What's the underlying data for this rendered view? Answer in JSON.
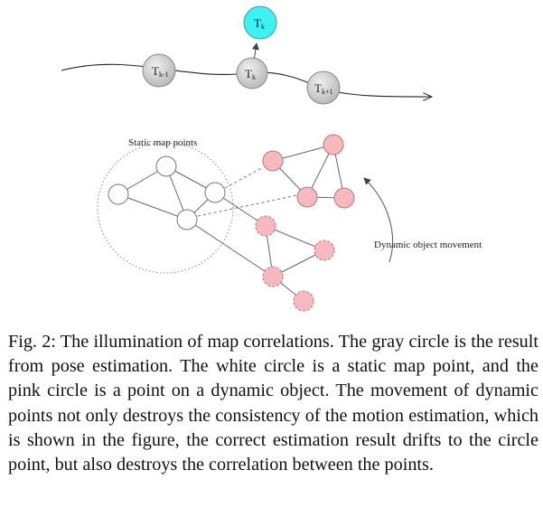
{
  "diagram": {
    "pose_nodes": [
      {
        "id": "tk_minus",
        "base": "T",
        "sub": "k-1"
      },
      {
        "id": "tk",
        "base": "T",
        "sub": "k"
      },
      {
        "id": "tk_plus",
        "base": "T",
        "sub": "k+1"
      },
      {
        "id": "tk_top",
        "base": "T",
        "sub": "k"
      }
    ],
    "labels": {
      "static_map_points": "Static map points",
      "dynamic_object_movement": "Dynamic object movement"
    },
    "colors": {
      "pose_gray": "#c9c9c9",
      "pose_cyan": "#3df2f2",
      "static_white": "#ffffff",
      "dynamic_pink": "#f7b9bd",
      "edge": "#555555"
    }
  },
  "caption": "Fig. 2: The illumination of map correlations. The gray circle is the result from pose estimation. The white circle is a static map point, and the pink circle is a point on a dynamic object. The movement of dynamic points not only destroys the consistency of the motion estimation, which is shown in the figure, the correct estimation result drifts to the circle point, but also destroys the correlation between the points."
}
